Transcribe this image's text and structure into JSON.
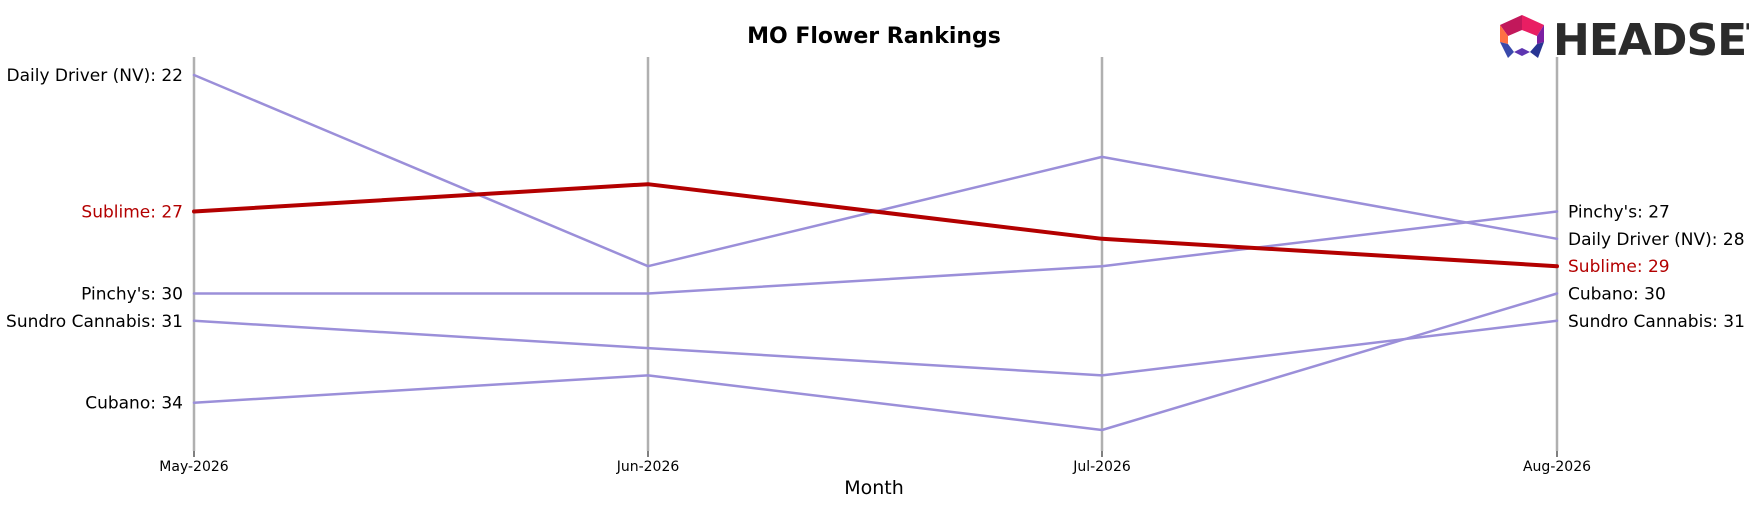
{
  "logo": {
    "text": "HEADSET"
  },
  "chart_data": {
    "type": "line",
    "title": "MO Flower Rankings",
    "xlabel": "Month",
    "ylabel": "",
    "categories": [
      "May-2026",
      "Jun-2026",
      "Jul-2026",
      "Aug-2026"
    ],
    "ylim": [
      20.5,
      35.5
    ],
    "y_inverted": true,
    "grid": "vertical lines at each month",
    "legend": "none; series labelled at both ends",
    "colors": {
      "highlight": "#b30000",
      "other": "#9b8fd9",
      "axis": "#b0b0b0",
      "text": "#000000"
    },
    "series": [
      {
        "name": "Daily Driver (NV)",
        "values": [
          22,
          29,
          25,
          28
        ],
        "highlight": false
      },
      {
        "name": "Pinchy's",
        "values": [
          30,
          30,
          29,
          27
        ],
        "highlight": false
      },
      {
        "name": "Sundro Cannabis",
        "values": [
          31,
          32,
          33,
          31
        ],
        "highlight": false
      },
      {
        "name": "Cubano",
        "values": [
          34,
          33,
          35,
          30
        ],
        "highlight": false
      },
      {
        "name": "Sublime",
        "values": [
          27,
          26,
          28,
          29
        ],
        "highlight": true
      }
    ]
  }
}
